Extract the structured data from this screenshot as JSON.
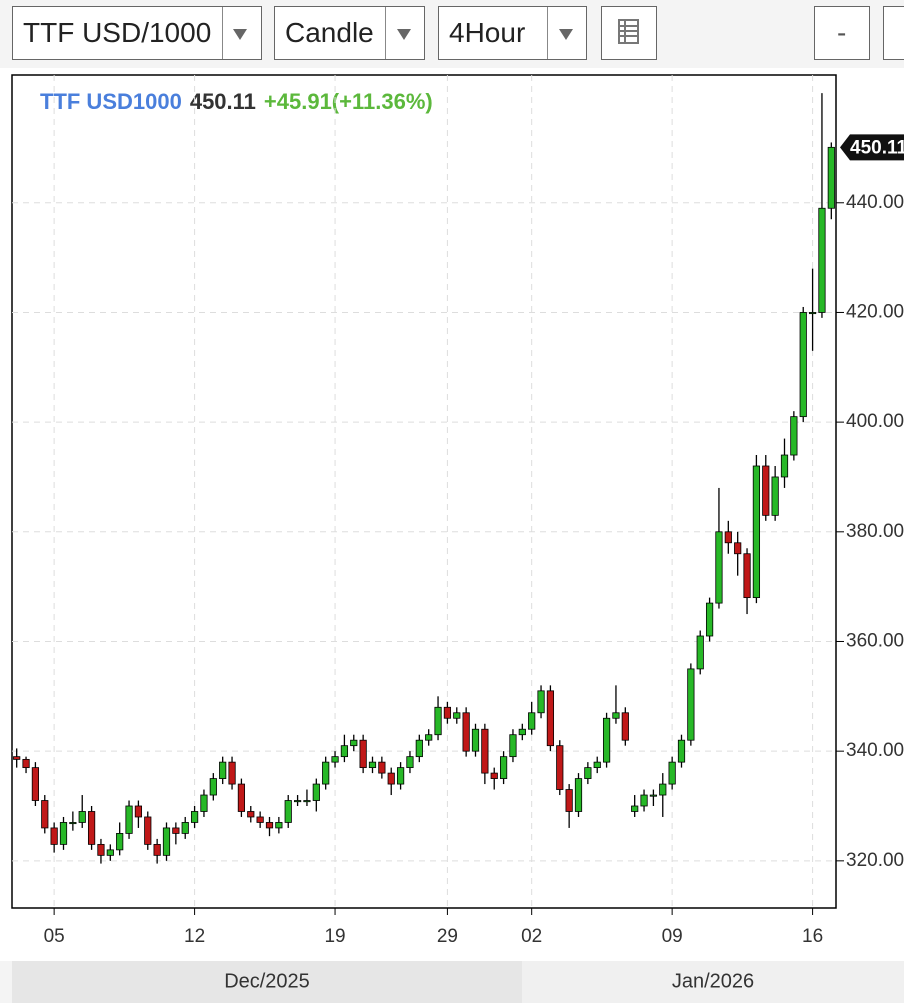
{
  "toolbar": {
    "symbol": "TTF USD/1000",
    "chart_type": "Candle",
    "interval": "4Hour",
    "zoom_out": "-"
  },
  "chart_data": {
    "type": "candlestick",
    "symbol": "TTF USD1000",
    "change": "+45.91(+11.36%)",
    "up_color": "#27b827",
    "down_color": "#c01818",
    "grid": true,
    "ylim": [
      311.4,
      463.3
    ],
    "yticks": [
      {
        "value": 320,
        "label": "320.00"
      },
      {
        "value": 340,
        "label": "340.00"
      },
      {
        "value": 360,
        "label": "360.00"
      },
      {
        "value": 380,
        "label": "380.00"
      },
      {
        "value": 400,
        "label": "400.00"
      },
      {
        "value": 420,
        "label": "420.00"
      },
      {
        "value": 440,
        "label": "440.00"
      }
    ],
    "categories": [
      null,
      null,
      null,
      null,
      "05",
      null,
      null,
      null,
      null,
      null,
      null,
      null,
      null,
      null,
      null,
      null,
      null,
      null,
      null,
      "12",
      null,
      null,
      null,
      null,
      null,
      null,
      null,
      null,
      null,
      null,
      null,
      null,
      null,
      null,
      "19",
      null,
      null,
      null,
      null,
      null,
      null,
      null,
      null,
      null,
      null,
      null,
      "29",
      null,
      null,
      null,
      null,
      null,
      null,
      null,
      null,
      "02",
      null,
      null,
      null,
      null,
      null,
      null,
      null,
      null,
      null,
      null,
      null,
      null,
      null,
      null,
      "09",
      null,
      null,
      null,
      null,
      null,
      null,
      null,
      null,
      null,
      null,
      null,
      null,
      null,
      null,
      "16",
      null,
      null
    ],
    "periods": [
      {
        "label": "Dec/2025",
        "start": 0,
        "end": 54
      },
      {
        "label": "Jan/2026",
        "start": 55,
        "end": 87
      }
    ],
    "open": [
      339,
      338.5,
      337,
      331,
      326,
      323,
      327,
      327,
      329,
      323,
      321,
      322,
      325,
      330,
      328,
      323,
      321,
      326,
      325,
      327,
      329,
      332,
      335,
      338,
      334,
      329,
      328,
      327,
      326,
      327,
      331,
      331,
      331,
      334,
      338,
      339,
      341,
      342,
      337,
      338,
      336,
      334,
      337,
      339,
      342,
      343,
      348,
      346,
      347,
      340,
      344,
      336,
      335,
      339,
      343,
      344,
      347,
      351,
      341,
      333,
      329,
      335,
      337,
      338,
      346,
      347,
      329,
      330,
      332,
      332,
      334,
      338,
      342,
      355,
      361,
      367,
      380,
      378,
      376,
      368,
      392,
      383,
      390,
      394,
      401,
      420,
      420,
      439
    ],
    "high": [
      340.5,
      339,
      338,
      332,
      327,
      328,
      329,
      332,
      330,
      324,
      323,
      327,
      331,
      331,
      329,
      324,
      327,
      327,
      328,
      330,
      333,
      336,
      339,
      339,
      335,
      330,
      329,
      328,
      328,
      332,
      332,
      333,
      335,
      339,
      340,
      343,
      343,
      343,
      339,
      339,
      337,
      338,
      340,
      343,
      344,
      350,
      349,
      348,
      348,
      345,
      345,
      337,
      340,
      344,
      345,
      349,
      352,
      352,
      342,
      334,
      336,
      338,
      339,
      347,
      352,
      348,
      332,
      333,
      333,
      336,
      339,
      343,
      356,
      362,
      368,
      388,
      382,
      380,
      377,
      394,
      394,
      392,
      397,
      402,
      421,
      428,
      460,
      451
    ],
    "low": [
      337,
      336,
      330,
      325,
      321.5,
      322,
      325.5,
      326,
      322,
      319.5,
      320,
      321,
      324,
      326,
      322,
      319.5,
      320,
      323,
      324,
      326,
      328,
      331,
      334,
      333,
      328,
      327,
      326,
      324.5,
      325,
      326,
      330,
      330,
      329,
      333,
      337,
      338,
      340,
      336,
      336,
      335,
      332,
      333,
      336,
      338,
      341,
      342,
      345,
      345,
      339,
      339,
      334,
      333,
      334,
      338,
      342,
      343,
      346,
      340,
      332,
      326,
      328,
      334,
      336,
      337,
      345,
      341,
      328,
      329,
      330,
      328,
      333,
      337,
      341,
      354,
      360,
      366,
      376,
      372,
      365,
      367,
      382,
      382,
      388,
      393,
      400,
      413,
      419,
      437
    ],
    "close": [
      338.5,
      337,
      331,
      326,
      323,
      327,
      327,
      329,
      323,
      321,
      322,
      325,
      330,
      328,
      323,
      321,
      326,
      325,
      327,
      329,
      332,
      335,
      338,
      334,
      329,
      328,
      327,
      326,
      327,
      331,
      331,
      331,
      334,
      338,
      339,
      341,
      342,
      337,
      338,
      336,
      334,
      337,
      339,
      342,
      343,
      348,
      346,
      347,
      340,
      344,
      336,
      335,
      339,
      343,
      344,
      347,
      351,
      341,
      333,
      329,
      335,
      337,
      338,
      346,
      347,
      342,
      330,
      332,
      332,
      334,
      338,
      342,
      355,
      361,
      367,
      380,
      378,
      376,
      368,
      392,
      383,
      390,
      394,
      401,
      420,
      420,
      439,
      450.11
    ]
  }
}
